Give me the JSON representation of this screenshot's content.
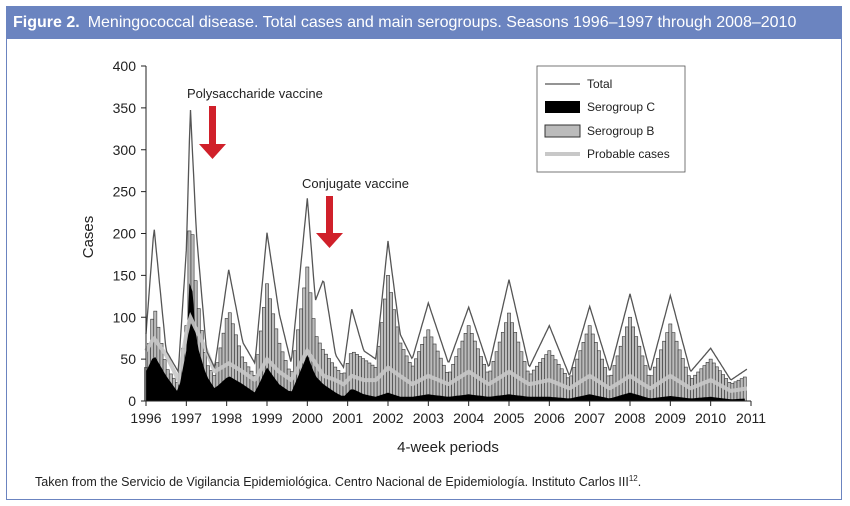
{
  "figure": {
    "label": "Figure 2.",
    "title": "Meningococcal disease. Total cases and main serogroups. Seasons 1996–1997 through 2008–2010"
  },
  "footer": {
    "text": "Taken from the Servicio de Vigilancia Epidemiológica. Centro Nacional de Epidemiología. Instituto Carlos III",
    "ref": "12"
  },
  "chart_data": {
    "type": "bar",
    "xlabel": "4-week periods",
    "ylabel": "Cases",
    "ylim": [
      0,
      400
    ],
    "xlim": [
      1996,
      2011
    ],
    "yticks": [
      0,
      50,
      100,
      150,
      200,
      250,
      300,
      350,
      400
    ],
    "xticks": [
      "1996",
      "1997",
      "1998",
      "1999",
      "2000",
      "2001",
      "2002",
      "2003",
      "2004",
      "2005",
      "2006",
      "2007",
      "2008",
      "2009",
      "2010",
      "2011"
    ],
    "legend": {
      "position": "top-right",
      "entries": [
        "Total",
        "Serogroup C",
        "Serogroup B",
        "Probable cases"
      ]
    },
    "annotations": [
      {
        "text": "Polysaccharide vaccine",
        "x": 1997.6
      },
      {
        "text": "Conjugate vaccine",
        "x": 2000.7
      }
    ],
    "colors": {
      "total": "#555555",
      "serogroup_c": "#000000",
      "serogroup_b": "#bbbbbb",
      "probable": "#c8c8c8",
      "arrow": "#d0202a"
    },
    "keypoints_columns": [
      "year",
      "total",
      "serogroup_b",
      "serogroup_c",
      "probable"
    ],
    "keypoints": [
      [
        1996.0,
        80,
        40,
        35,
        60
      ],
      [
        1996.2,
        207,
        115,
        55,
        75
      ],
      [
        1996.5,
        60,
        40,
        30,
        55
      ],
      [
        1996.8,
        35,
        20,
        10,
        25
      ],
      [
        1997.0,
        180,
        90,
        60,
        80
      ],
      [
        1997.1,
        350,
        237,
        165,
        100
      ],
      [
        1997.25,
        200,
        130,
        70,
        85
      ],
      [
        1997.5,
        60,
        45,
        30,
        60
      ],
      [
        1997.7,
        40,
        30,
        15,
        35
      ],
      [
        1998.05,
        157,
        110,
        30,
        45
      ],
      [
        1998.4,
        70,
        50,
        20,
        35
      ],
      [
        1998.7,
        45,
        30,
        10,
        25
      ],
      [
        1999.0,
        201,
        140,
        40,
        50
      ],
      [
        1999.3,
        105,
        70,
        20,
        35
      ],
      [
        1999.6,
        45,
        30,
        10,
        25
      ],
      [
        2000.0,
        242,
        160,
        55,
        60
      ],
      [
        2000.2,
        120,
        80,
        30,
        45
      ],
      [
        2000.4,
        145,
        60,
        20,
        30
      ],
      [
        2000.7,
        55,
        40,
        10,
        25
      ],
      [
        2000.9,
        40,
        30,
        5,
        20
      ],
      [
        2001.1,
        110,
        60,
        15,
        30
      ],
      [
        2001.4,
        60,
        50,
        8,
        25
      ],
      [
        2001.7,
        50,
        40,
        5,
        25
      ],
      [
        2002.0,
        191,
        150,
        10,
        40
      ],
      [
        2002.3,
        80,
        70,
        5,
        30
      ],
      [
        2002.6,
        50,
        40,
        5,
        20
      ],
      [
        2003.0,
        117,
        85,
        8,
        30
      ],
      [
        2003.5,
        45,
        30,
        5,
        20
      ],
      [
        2004.0,
        112,
        90,
        8,
        35
      ],
      [
        2004.5,
        40,
        30,
        5,
        20
      ],
      [
        2005.0,
        145,
        105,
        8,
        35
      ],
      [
        2005.5,
        40,
        30,
        5,
        20
      ],
      [
        2006.0,
        90,
        60,
        5,
        25
      ],
      [
        2006.5,
        30,
        25,
        3,
        15
      ],
      [
        2007.0,
        113,
        90,
        8,
        30
      ],
      [
        2007.5,
        35,
        25,
        3,
        15
      ],
      [
        2008.0,
        128,
        100,
        10,
        30
      ],
      [
        2008.5,
        35,
        25,
        3,
        15
      ],
      [
        2009.0,
        126,
        92,
        6,
        30
      ],
      [
        2009.5,
        35,
        25,
        3,
        15
      ],
      [
        2010.0,
        63,
        50,
        5,
        25
      ],
      [
        2010.5,
        25,
        20,
        2,
        12
      ],
      [
        2010.9,
        38,
        30,
        3,
        15
      ]
    ]
  }
}
